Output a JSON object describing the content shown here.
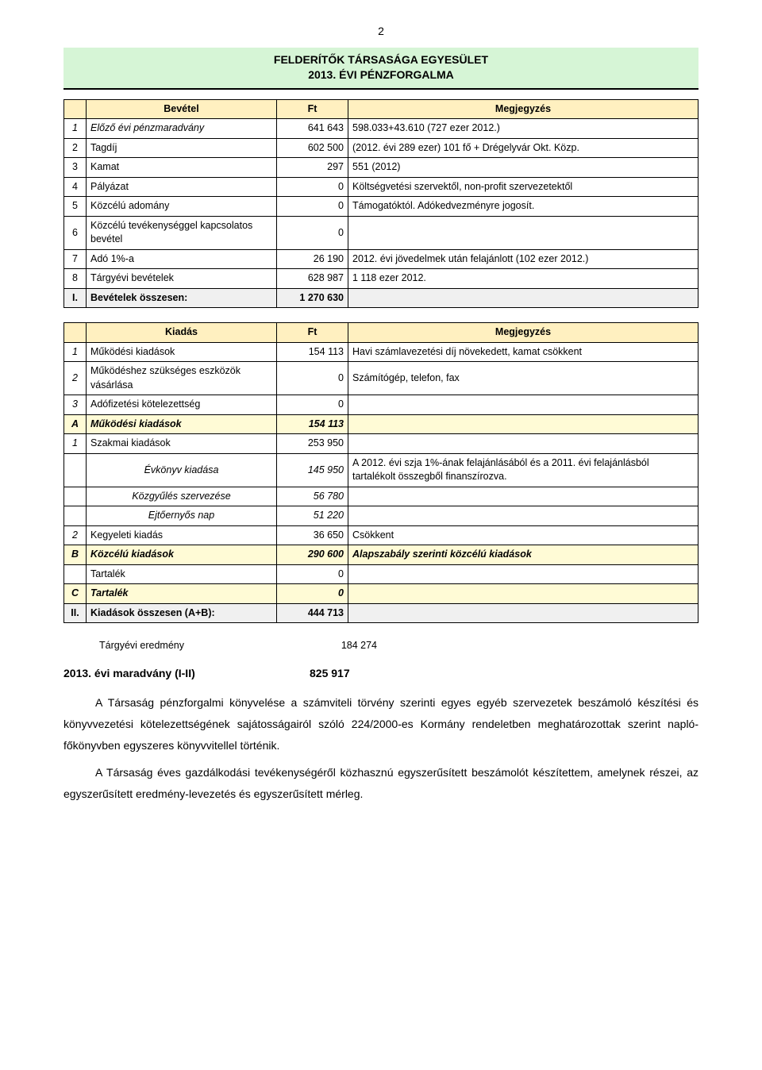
{
  "page_number": "2",
  "title_line1": "FELDERÍTŐK TÁRSASÁGA EGYESÜLET",
  "title_line2": "2013. ÉVI PÉNZFORGALMA",
  "table1": {
    "headers": {
      "label": "Bevétel",
      "value": "Ft",
      "note": "Megjegyzés"
    },
    "rows": [
      {
        "idx": "1",
        "label": "Előző évi pénzmaradvány",
        "value": "641 643",
        "note": "598.033+43.610 (727 ezer 2012.)",
        "italic_label": true
      },
      {
        "idx": "2",
        "label": "Tagdíj",
        "value": "602 500",
        "note": "(2012. évi 289 ezer) 101 fő + Drégelyvár Okt. Közp."
      },
      {
        "idx": "3",
        "label": "Kamat",
        "value": "297",
        "note": " 551 (2012)"
      },
      {
        "idx": "4",
        "label": "Pályázat",
        "value": "0",
        "note": "Költségvetési szervektől, non-profit szervezetektől"
      },
      {
        "idx": "5",
        "label": "Közcélú adomány",
        "value": "0",
        "note": "Támogatóktól. Adókedvezményre jogosít."
      },
      {
        "idx": "6",
        "label": "Közcélú tevékenységgel kapcsolatos bevétel",
        "value": "0",
        "note": ""
      },
      {
        "idx": "7",
        "label": "Adó 1%-a",
        "value": "26 190",
        "note": "2012. évi jövedelmek után felajánlott (102 ezer 2012.)"
      },
      {
        "idx": "8",
        "label": "Tárgyévi bevételek",
        "value": "628 987",
        "note": "1 118 ezer 2012."
      }
    ],
    "sum": {
      "idx": "I.",
      "label": "Bevételek összesen:",
      "value": "1 270 630"
    }
  },
  "table2": {
    "headers": {
      "label": "Kiadás",
      "value": "Ft",
      "note": "Megjegyzés"
    },
    "rows": [
      {
        "idx": "1",
        "label": "Működési kiadások",
        "value": "154 113",
        "note": "Havi számlavezetési díj növekedett, kamat csökkent",
        "italic_idx": true
      },
      {
        "idx": "2",
        "label": "Működéshez szükséges eszközök vásárlása",
        "value": "0",
        "note": "Számítógép, telefon, fax",
        "italic_idx": true
      },
      {
        "idx": "3",
        "label": "Adófizetési kötelezettség",
        "value": "0",
        "note": "",
        "italic_idx": true
      },
      {
        "idx": "A",
        "label": "Működési kiadások",
        "value": "154 113",
        "note": "",
        "hl": true,
        "bold": true,
        "italic": true
      },
      {
        "idx": "1",
        "label": "Szakmai  kiadások",
        "value": "253 950",
        "note": "",
        "italic_idx": true
      },
      {
        "idx": "",
        "label": "Évkönyv kiadása",
        "value": "145 950",
        "note": "A 2012. évi szja 1%-ának felajánlásából és a 2011. évi felajánlásból tartalékolt összegből finanszírozva.",
        "indent": true,
        "italic": true
      },
      {
        "idx": "",
        "label": "Közgyűlés szervezése",
        "value": "56 780",
        "note": "",
        "indent": true,
        "italic": true
      },
      {
        "idx": "",
        "label": "Ejtőernyős nap",
        "value": "51 220",
        "note": "",
        "indent": true,
        "italic": true
      },
      {
        "idx": "2",
        "label": "Kegyeleti kiadás",
        "value": "36 650",
        "note": "Csökkent",
        "italic_idx": true
      },
      {
        "idx": "B",
        "label": "Közcélú kiadások",
        "value": "290 600",
        "note": "Alapszabály szerinti közcélú kiadások",
        "hl": true,
        "bold": true,
        "italic": true
      },
      {
        "idx": "",
        "label": "Tartalék",
        "value": "0",
        "note": ""
      },
      {
        "idx": "C",
        "label": "Tartalék",
        "value": "0",
        "note": "",
        "hl": true,
        "bold": true,
        "italic": true
      }
    ],
    "sum": {
      "idx": "II.",
      "label": "Kiadások összesen (A+B):",
      "value": "444 713"
    }
  },
  "result1": {
    "label": "Tárgyévi eredmény",
    "value": "184 274"
  },
  "result2": {
    "label": "2013. évi maradvány (I-II)",
    "value": "825 917"
  },
  "para1": "A Társaság pénzforgalmi könyvelése a számviteli törvény szerinti egyes egyéb szervezetek beszámoló készítési és könyvvezetési kötelezettségének sajátosságairól szóló 224/2000-es Kormány rendeletben meghatározottak szerint napló-főkönyvben egyszeres könyvvitellel történik.",
  "para2": "A Társaság éves gazdálkodási tevékenységéről közhasznú egyszerűsített beszámolót készítettem, amelynek részei, az egyszerűsített eredmény-levezetés és egyszerűsített mérleg.",
  "colors": {
    "band_bg": "#d6f5d6",
    "header_bg": "#fff0c0",
    "highlight_bg": "#fffbd6",
    "sum_bg": "#f0f0f0"
  }
}
